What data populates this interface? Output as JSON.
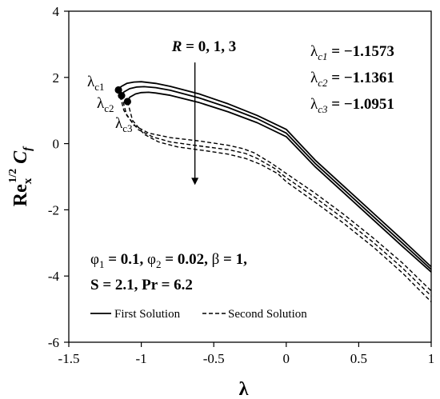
{
  "chart_data": {
    "type": "line",
    "xlabel": "λ",
    "ylabel": {
      "main": "Re",
      "sub": "x",
      "sup": "1/2",
      "tail": "C",
      "tail_sub": "f"
    },
    "xlim": [
      -1.5,
      1
    ],
    "ylim": [
      -6,
      4
    ],
    "x_ticks": [
      -1.5,
      -1,
      -0.5,
      0,
      0.5,
      1
    ],
    "x_tick_labels": [
      "-1.5",
      "-1",
      "-0.5",
      "0",
      "0.5",
      "1"
    ],
    "y_ticks": [
      -6,
      -4,
      -2,
      0,
      2,
      4
    ],
    "y_tick_labels": [
      "-6",
      "-4",
      "-2",
      "0",
      "2",
      "4"
    ],
    "grid": false,
    "legend_position": "bottom",
    "legend": [
      {
        "label": "First Solution",
        "style": "solid"
      },
      {
        "label": "Second Solution",
        "style": "dashed"
      }
    ],
    "series": [
      {
        "style": "solid",
        "x": [
          -1.1573,
          -1.14,
          -1.1,
          -1.05,
          -1.0,
          -0.9,
          -0.8,
          -0.6,
          -0.4,
          -0.2,
          0.0,
          0.2,
          0.4,
          0.6,
          0.8,
          1.0
        ],
        "y": [
          1.62,
          1.72,
          1.82,
          1.86,
          1.87,
          1.82,
          1.73,
          1.5,
          1.2,
          0.85,
          0.43,
          -0.5,
          -1.3,
          -2.1,
          -2.9,
          -3.72
        ]
      },
      {
        "style": "solid",
        "x": [
          -1.1361,
          -1.12,
          -1.08,
          -1.03,
          -0.98,
          -0.9,
          -0.8,
          -0.6,
          -0.4,
          -0.2,
          0.0,
          0.2,
          0.4,
          0.6,
          0.8,
          1.0
        ],
        "y": [
          1.45,
          1.56,
          1.66,
          1.71,
          1.72,
          1.69,
          1.61,
          1.38,
          1.09,
          0.75,
          0.32,
          -0.6,
          -1.4,
          -2.2,
          -3.0,
          -3.8
        ]
      },
      {
        "style": "solid",
        "x": [
          -1.0951,
          -1.08,
          -1.04,
          -1.0,
          -0.95,
          -0.9,
          -0.8,
          -0.6,
          -0.4,
          -0.2,
          0.0,
          0.2,
          0.4,
          0.6,
          0.8,
          1.0
        ],
        "y": [
          1.27,
          1.4,
          1.5,
          1.54,
          1.55,
          1.53,
          1.46,
          1.24,
          0.96,
          0.63,
          0.21,
          -0.7,
          -1.5,
          -2.3,
          -3.1,
          -3.88
        ]
      },
      {
        "style": "dashed",
        "x": [
          -1.1573,
          -1.12,
          -1.05,
          -0.95,
          -0.8,
          -0.6,
          -0.4,
          -0.3,
          -0.22,
          -0.1,
          0.0,
          0.2,
          0.4,
          0.6,
          0.8,
          1.0
        ],
        "y": [
          1.62,
          1.0,
          0.55,
          0.32,
          0.18,
          0.08,
          -0.05,
          -0.15,
          -0.28,
          -0.6,
          -0.9,
          -1.5,
          -2.15,
          -2.85,
          -3.6,
          -4.45
        ]
      },
      {
        "style": "dashed",
        "x": [
          -1.1361,
          -1.1,
          -1.02,
          -0.92,
          -0.8,
          -0.6,
          -0.4,
          -0.28,
          -0.2,
          -0.08,
          0.0,
          0.2,
          0.4,
          0.6,
          0.8,
          1.0
        ],
        "y": [
          1.45,
          0.85,
          0.42,
          0.2,
          0.05,
          -0.07,
          -0.18,
          -0.3,
          -0.45,
          -0.75,
          -1.03,
          -1.63,
          -2.28,
          -2.98,
          -3.75,
          -4.6
        ]
      },
      {
        "style": "dashed",
        "x": [
          -1.0951,
          -1.06,
          -0.98,
          -0.88,
          -0.75,
          -0.55,
          -0.4,
          -0.28,
          -0.18,
          -0.06,
          0.0,
          0.2,
          0.4,
          0.6,
          0.8,
          1.0
        ],
        "y": [
          1.27,
          0.7,
          0.28,
          0.05,
          -0.1,
          -0.22,
          -0.32,
          -0.45,
          -0.62,
          -0.9,
          -1.15,
          -1.77,
          -2.42,
          -3.12,
          -3.9,
          -4.78
        ]
      }
    ],
    "critical_points": [
      {
        "x": -1.1573,
        "y": 1.62
      },
      {
        "x": -1.1361,
        "y": 1.45
      },
      {
        "x": -1.0951,
        "y": 1.27
      }
    ],
    "critical_labels": [
      {
        "base": "λ",
        "sub": "c1"
      },
      {
        "base": "λ",
        "sub": "c2"
      },
      {
        "base": "λ",
        "sub": "c3"
      }
    ],
    "critical_values": [
      {
        "base": "λ",
        "sub": "c1",
        "value": " = −1.1573"
      },
      {
        "base": "λ",
        "sub": "c2",
        "value": " = −1.1361"
      },
      {
        "base": "λ",
        "sub": "c3",
        "value": " = −1.0951"
      }
    ],
    "arrow_annotation": {
      "text": "R = 0, 1, 3",
      "from": [
        -0.63,
        2.45
      ],
      "to": [
        -0.63,
        -1.25
      ]
    },
    "parameters": {
      "line1": [
        {
          "base": "φ",
          "sub": "1",
          "value": " = 0.1, "
        },
        {
          "base": "φ",
          "sub": "2",
          "value": " = 0.02, "
        },
        {
          "base": "β",
          "sub": "",
          "value": " = 1,"
        }
      ],
      "line2": "S = 2.1, Pr = 6.2"
    }
  }
}
